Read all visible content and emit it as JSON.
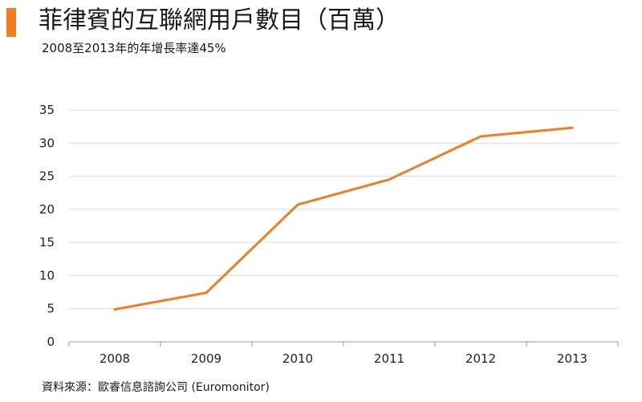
{
  "header": {
    "title": "菲律賓的互聯網用戶數目（百萬）",
    "subtitle": "2008至2013年的年增長率達45%"
  },
  "footer": {
    "source": "資料來源：歐睿信息諮詢公司 (Euromonitor)"
  },
  "colors": {
    "accent": "#f07d22",
    "line": "#f07d22",
    "grid": "#d9d9d9",
    "axis": "#999999"
  },
  "chart_data": {
    "type": "line",
    "title": "菲律賓的互聯網用戶數目（百萬）",
    "subtitle": "2008至2013年的年增長率達45%",
    "xlabel": "",
    "ylabel": "",
    "categories": [
      "2008",
      "2009",
      "2010",
      "2011",
      "2012",
      "2013"
    ],
    "series": [
      {
        "values": [
          4.9,
          7.4,
          20.7,
          24.5,
          31.0,
          32.3
        ]
      }
    ],
    "ylim": [
      0,
      35
    ],
    "yticks": [
      0,
      5,
      10,
      15,
      20,
      25,
      30,
      35
    ],
    "grid": true,
    "legend": "none"
  }
}
